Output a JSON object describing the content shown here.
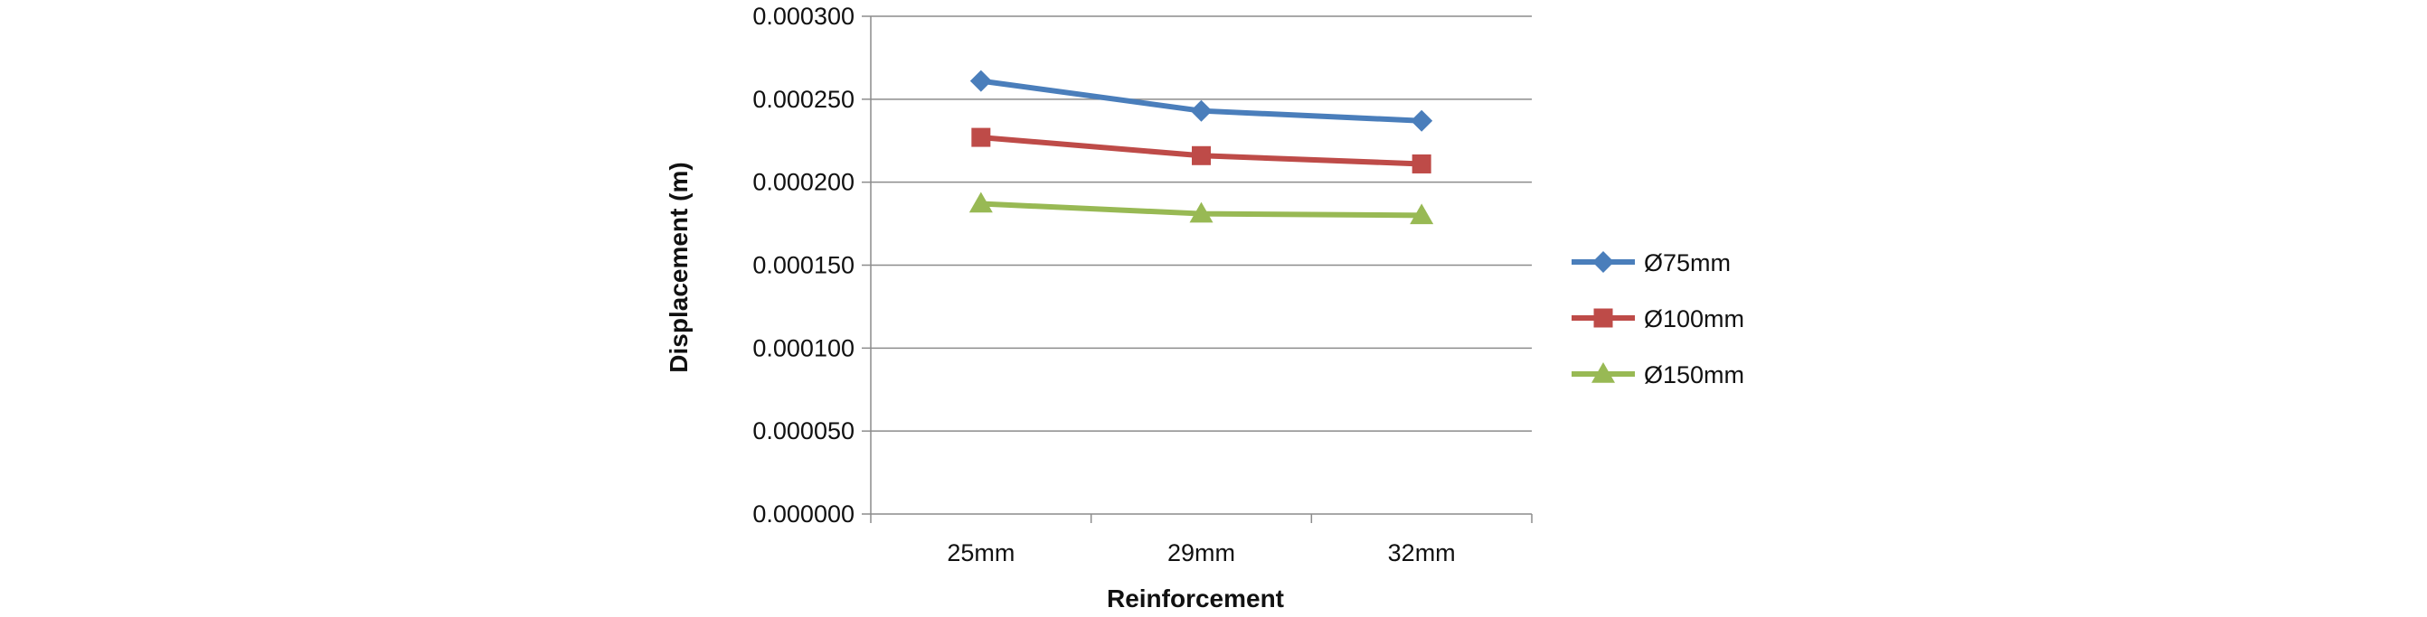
{
  "chart_data": {
    "type": "line",
    "title": "",
    "xlabel": "Reinforcement",
    "ylabel": "Displacement (m)",
    "categories": [
      "25mm",
      "29mm",
      "32mm"
    ],
    "ylim": [
      0,
      0.0003
    ],
    "yticks": [
      0.0,
      5e-05,
      0.0001,
      0.00015,
      0.0002,
      0.00025,
      0.0003
    ],
    "ytick_labels": [
      "0.000000",
      "0.000050",
      "0.000100",
      "0.000150",
      "0.000200",
      "0.000250",
      "0.000300"
    ],
    "grid": "horizontal",
    "legend_position": "right",
    "series": [
      {
        "name": "Ø75mm",
        "values": [
          0.000261,
          0.000243,
          0.000237
        ],
        "color": "#4A7EBB",
        "marker": "diamond"
      },
      {
        "name": "Ø100mm",
        "values": [
          0.000227,
          0.000216,
          0.000211
        ],
        "color": "#BE4B48",
        "marker": "square"
      },
      {
        "name": "Ø150mm",
        "values": [
          0.000187,
          0.000181,
          0.00018
        ],
        "color": "#98B954",
        "marker": "triangle"
      }
    ]
  }
}
